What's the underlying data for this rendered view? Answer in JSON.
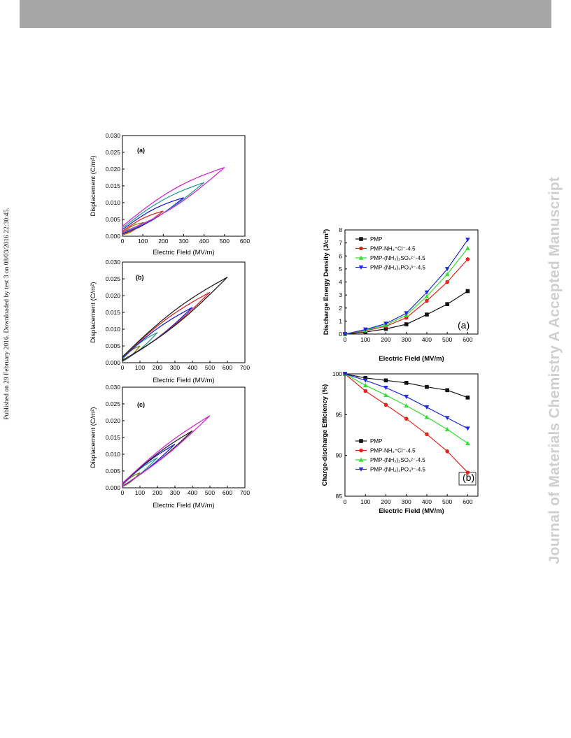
{
  "page": {
    "side_caption": "Published on 29 February 2016. Downloaded by test 3 on 08/03/2016 22:30:45.",
    "watermark": "Journal of Materials Chemistry A Accepted Manuscript"
  },
  "chart_data": [
    {
      "type": "line",
      "panel": "(a)",
      "xlabel": "Electric Field (MV/m)",
      "ylabel": "Displacement (C/m²)",
      "xlim": [
        0,
        600
      ],
      "ylim": [
        0,
        0.03
      ],
      "xticks": [
        "0",
        "100",
        "200",
        "300",
        "400",
        "500",
        "600"
      ],
      "yticks": [
        "0.000",
        "0.005",
        "0.010",
        "0.015",
        "0.020",
        "0.025",
        "0.030"
      ],
      "loops": [
        {
          "color": "#808000",
          "emax": 100,
          "dmax": 0.004,
          "dr": 0.001,
          "w": 0.0006
        },
        {
          "color": "#d62728",
          "emax": 200,
          "dmax": 0.0075,
          "dr": 0.0015,
          "w": 0.0008
        },
        {
          "color": "#1f1fd6",
          "emax": 300,
          "dmax": 0.0115,
          "dr": 0.002,
          "w": 0.0012
        },
        {
          "color": "#2a9d8f",
          "emax": 400,
          "dmax": 0.016,
          "dr": 0.0025,
          "w": 0.0016
        },
        {
          "color": "#d628d6",
          "emax": 500,
          "dmax": 0.0205,
          "dr": 0.003,
          "w": 0.0022
        }
      ]
    },
    {
      "type": "line",
      "panel": "(b)",
      "xlabel": "Electric Field (MV/m)",
      "ylabel": "Displacement (C/m²)",
      "xlim": [
        0,
        700
      ],
      "ylim": [
        0,
        0.03
      ],
      "xticks": [
        "0",
        "100",
        "200",
        "300",
        "400",
        "500",
        "600",
        "700"
      ],
      "yticks": [
        "0.000",
        "0.005",
        "0.010",
        "0.015",
        "0.020",
        "0.025",
        "0.030"
      ],
      "loops": [
        {
          "color": "#808000",
          "emax": 100,
          "dmax": 0.005,
          "dr": 0.001,
          "w": 0.0006
        },
        {
          "color": "#2a9d8f",
          "emax": 200,
          "dmax": 0.009,
          "dr": 0.0012,
          "w": 0.0008
        },
        {
          "color": "#1f1fd6",
          "emax": 400,
          "dmax": 0.0165,
          "dr": 0.0015,
          "w": 0.0012
        },
        {
          "color": "#d62728",
          "emax": 500,
          "dmax": 0.021,
          "dr": 0.0017,
          "w": 0.0016
        },
        {
          "color": "#222222",
          "emax": 600,
          "dmax": 0.0255,
          "dr": 0.0018,
          "w": 0.002
        }
      ]
    },
    {
      "type": "line",
      "panel": "(c)",
      "xlabel": "Electric Field (MV/m)",
      "ylabel": "Displacement (C/m²)",
      "xlim": [
        0,
        700
      ],
      "ylim": [
        0,
        0.03
      ],
      "xticks": [
        "0",
        "100",
        "200",
        "300",
        "400",
        "500",
        "600",
        "700"
      ],
      "yticks": [
        "0.000",
        "0.005",
        "0.010",
        "0.015",
        "0.020",
        "0.025",
        "0.030"
      ],
      "loops": [
        {
          "color": "#808000",
          "emax": 100,
          "dmax": 0.0045,
          "dr": 0.0008,
          "w": 0.0005
        },
        {
          "color": "#2a9d8f",
          "emax": 200,
          "dmax": 0.009,
          "dr": 0.001,
          "w": 0.0006
        },
        {
          "color": "#1f1fd6",
          "emax": 300,
          "dmax": 0.013,
          "dr": 0.0012,
          "w": 0.0008
        },
        {
          "color": "#222222",
          "emax": 400,
          "dmax": 0.017,
          "dr": 0.0013,
          "w": 0.001
        },
        {
          "color": "#d628d6",
          "emax": 500,
          "dmax": 0.0215,
          "dr": 0.0014,
          "w": 0.0013
        }
      ]
    },
    {
      "type": "line",
      "panel": "(a)",
      "xlabel": "Electric Field (MV/m)",
      "ylabel": "Discharge Energy Density (J/cm³)",
      "xlim": [
        0,
        650
      ],
      "ylim": [
        0,
        8
      ],
      "xticks": [
        0,
        100,
        200,
        300,
        400,
        500,
        600
      ],
      "yticks": [
        0,
        1,
        2,
        3,
        4,
        5,
        6,
        7,
        8
      ],
      "x": [
        0,
        100,
        200,
        300,
        400,
        500,
        600
      ],
      "series": [
        {
          "name": "PMP",
          "color": "#111111",
          "marker": "square",
          "values": [
            0,
            0.15,
            0.4,
            0.75,
            1.5,
            2.3,
            3.3
          ]
        },
        {
          "name": "PMP-NH₃⁺Cl⁻-4.5",
          "color": "#e3241b",
          "marker": "circle",
          "values": [
            0,
            0.25,
            0.6,
            1.25,
            2.55,
            4.0,
            5.75
          ]
        },
        {
          "name": "PMP-(NH₃)₂SO₄²⁻-4.5",
          "color": "#33dd33",
          "marker": "triangle-up",
          "values": [
            0,
            0.3,
            0.7,
            1.45,
            2.9,
            4.6,
            6.6
          ]
        },
        {
          "name": "PMP-(NH₃)₃PO₄³⁻-4.5",
          "color": "#1f2bd6",
          "marker": "triangle-down",
          "values": [
            0,
            0.35,
            0.8,
            1.6,
            3.2,
            5.0,
            7.25
          ]
        }
      ]
    },
    {
      "type": "line",
      "panel": "(b)",
      "xlabel": "Electric Field (MV/m)",
      "ylabel": "Charge-discharge Efficiency (%)",
      "xlim": [
        0,
        650
      ],
      "ylim": [
        85,
        100
      ],
      "xticks": [
        0,
        100,
        200,
        300,
        400,
        500,
        600
      ],
      "yticks": [
        85,
        90,
        95,
        100
      ],
      "x": [
        0,
        100,
        200,
        300,
        400,
        500,
        600
      ],
      "series": [
        {
          "name": "PMP",
          "color": "#111111",
          "marker": "square",
          "values": [
            100,
            99.5,
            99.2,
            98.9,
            98.4,
            98.0,
            97.1
          ]
        },
        {
          "name": "PMP-NH₃⁺Cl⁻-4.5",
          "color": "#e3241b",
          "marker": "circle",
          "values": [
            100,
            97.9,
            96.2,
            94.5,
            92.6,
            90.5,
            87.9
          ]
        },
        {
          "name": "PMP-(NH₃)₂SO₄²⁻-4.5",
          "color": "#33dd33",
          "marker": "triangle-up",
          "values": [
            100,
            98.6,
            97.4,
            96.1,
            94.7,
            93.2,
            91.5
          ]
        },
        {
          "name": "PMP-(NH₃)₃PO₄³⁻-4.5",
          "color": "#1f2bd6",
          "marker": "triangle-down",
          "values": [
            100,
            99.2,
            98.3,
            97.2,
            95.9,
            94.6,
            93.3
          ]
        }
      ]
    }
  ]
}
